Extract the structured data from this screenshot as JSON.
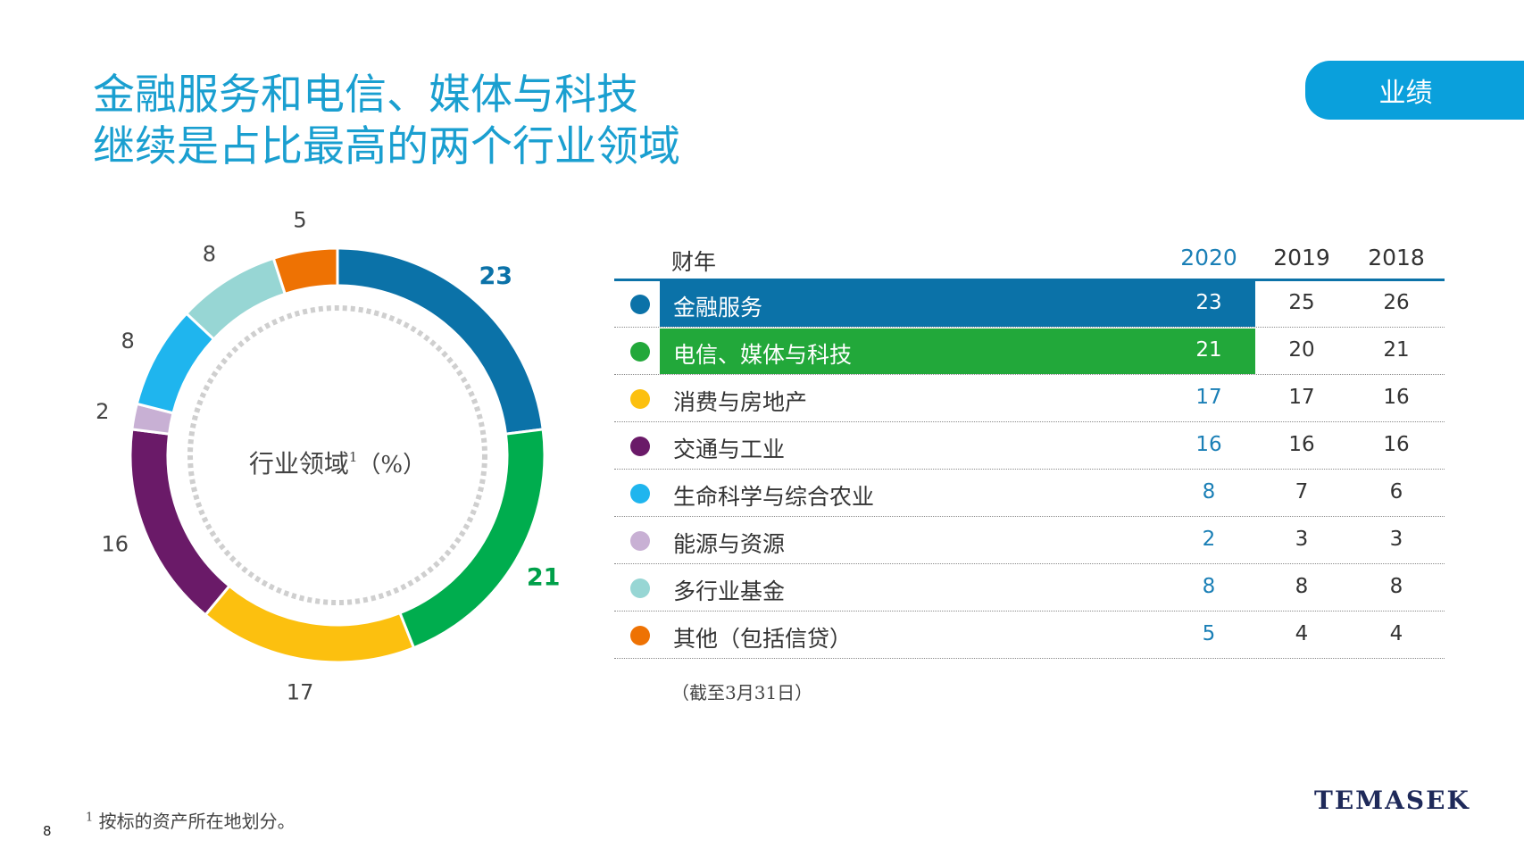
{
  "header": {
    "title_line1": "金融服务和电信、媒体与科技",
    "title_line2": "继续是占比最高的两个行业领域",
    "tab_label": "业绩"
  },
  "colors": {
    "title": "#1a9fd0",
    "tab": "#0aa0dc",
    "table_rule": "#0b72a8",
    "value_2020": "#1a7fb6"
  },
  "chart_data": {
    "type": "pie",
    "variant": "donut",
    "center_label": "行业领域",
    "center_sup": "1",
    "center_unit": "（%）",
    "values": [
      23,
      21,
      17,
      16,
      2,
      8,
      8,
      5
    ],
    "colors": [
      "#0b72a8",
      "#00ad4e",
      "#fcc00f",
      "#6a1a68",
      "#c8b0d4",
      "#1fb5ee",
      "#97d6d4",
      "#ee7203"
    ],
    "label_colors": [
      "#0b72a8",
      "#00a04a",
      "#444444",
      "#444444",
      "#444444",
      "#444444",
      "#444444",
      "#444444"
    ],
    "label_bold": [
      true,
      true,
      false,
      false,
      false,
      false,
      false,
      false
    ]
  },
  "table": {
    "header_sector": "财年",
    "years": [
      "2020",
      "2019",
      "2018"
    ],
    "rows": [
      {
        "label": "金融服务",
        "values": [
          "23",
          "25",
          "26"
        ],
        "color": "#0b72a8",
        "highlight": true
      },
      {
        "label": "电信、媒体与科技",
        "values": [
          "21",
          "20",
          "21"
        ],
        "color": "#22a83a",
        "highlight": true
      },
      {
        "label": "消费与房地产",
        "values": [
          "17",
          "17",
          "16"
        ],
        "color": "#fcc00f",
        "highlight": false
      },
      {
        "label": "交通与工业",
        "values": [
          "16",
          "16",
          "16"
        ],
        "color": "#6a1a68",
        "highlight": false
      },
      {
        "label": "生命科学与综合农业",
        "values": [
          "8",
          "7",
          "6"
        ],
        "color": "#1fb5ee",
        "highlight": false
      },
      {
        "label": "能源与资源",
        "values": [
          "2",
          "3",
          "3"
        ],
        "color": "#c8b0d4",
        "highlight": false
      },
      {
        "label": "多行业基金",
        "values": [
          "8",
          "8",
          "8"
        ],
        "color": "#97d6d4",
        "highlight": false
      },
      {
        "label": "其他（包括信贷）",
        "values": [
          "5",
          "4",
          "4"
        ],
        "color": "#ee7203",
        "highlight": false
      }
    ],
    "note": "（截至3月31日）"
  },
  "footer": {
    "footnote_sup": "1",
    "footnote": "按标的资产所在地划分。",
    "page_number": "8",
    "logo_text": "TEMASEK"
  }
}
